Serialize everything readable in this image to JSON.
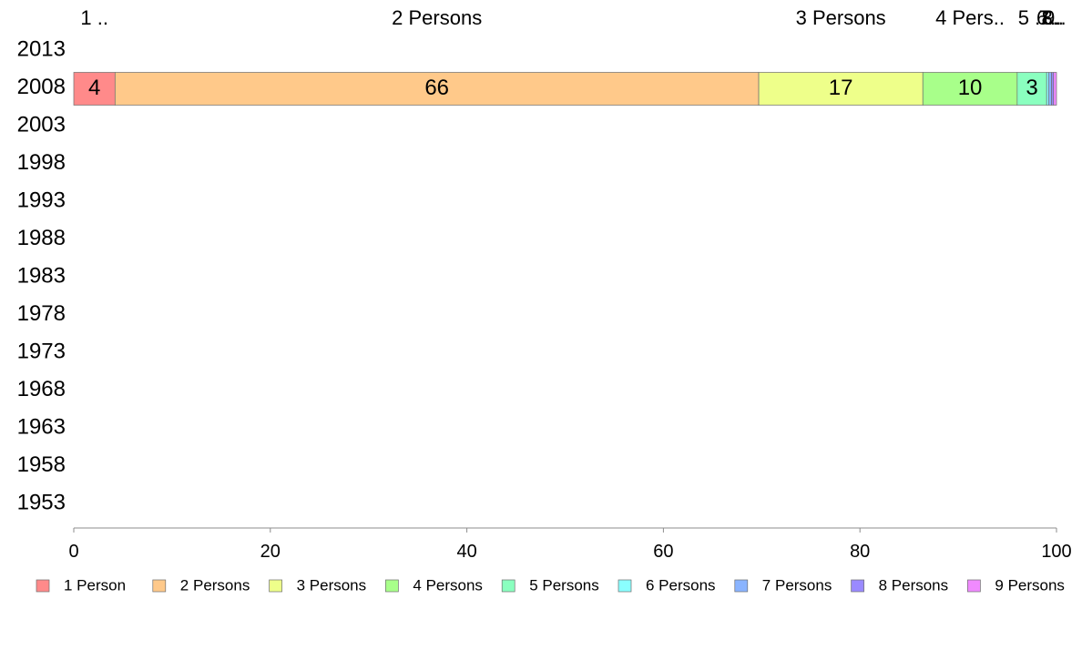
{
  "chart_data": {
    "type": "bar",
    "orientation": "horizontal",
    "stacked": true,
    "categories": [
      "2013",
      "2008",
      "2003",
      "1998",
      "1993",
      "1988",
      "1983",
      "1978",
      "1973",
      "1968",
      "1963",
      "1958",
      "1953"
    ],
    "series": [
      {
        "name": "1 Person",
        "color": "#ff8a8a",
        "values": [
          0,
          4.2,
          0,
          0,
          0,
          0,
          0,
          0,
          0,
          0,
          0,
          0,
          0
        ],
        "top_label": "1 ..",
        "value_label": "4"
      },
      {
        "name": "2 Persons",
        "color": "#ffc98a",
        "values": [
          0,
          65.5,
          0,
          0,
          0,
          0,
          0,
          0,
          0,
          0,
          0,
          0,
          0
        ],
        "top_label": "2 Persons",
        "value_label": "66"
      },
      {
        "name": "3 Persons",
        "color": "#eeff8a",
        "values": [
          0,
          16.7,
          0,
          0,
          0,
          0,
          0,
          0,
          0,
          0,
          0,
          0,
          0
        ],
        "top_label": "3 Persons",
        "value_label": "17"
      },
      {
        "name": "4 Persons",
        "color": "#a8ff8a",
        "values": [
          0,
          9.6,
          0,
          0,
          0,
          0,
          0,
          0,
          0,
          0,
          0,
          0,
          0
        ],
        "top_label": "4 Pers..",
        "value_label": "10"
      },
      {
        "name": "5 Persons",
        "color": "#8affbf",
        "values": [
          0,
          3.0,
          0,
          0,
          0,
          0,
          0,
          0,
          0,
          0,
          0,
          0,
          0
        ],
        "top_label": "5 ..",
        "value_label": "3"
      },
      {
        "name": "6 Persons",
        "color": "#8affff",
        "values": [
          0,
          0.2,
          0,
          0,
          0,
          0,
          0,
          0,
          0,
          0,
          0,
          0,
          0
        ],
        "top_label": "6..",
        "value_label": ""
      },
      {
        "name": "7 Persons",
        "color": "#8ab4ff",
        "values": [
          0,
          0.3,
          0,
          0,
          0,
          0,
          0,
          0,
          0,
          0,
          0,
          0,
          0
        ],
        "top_label": "7..",
        "value_label": ""
      },
      {
        "name": "8 Persons",
        "color": "#9a8aff",
        "values": [
          0,
          0.2,
          0,
          0,
          0,
          0,
          0,
          0,
          0,
          0,
          0,
          0,
          0
        ],
        "top_label": "8..",
        "value_label": ""
      },
      {
        "name": "9 Persons",
        "color": "#f08aff",
        "values": [
          0,
          0.3,
          0,
          0,
          0,
          0,
          0,
          0,
          0,
          0,
          0,
          0,
          0
        ],
        "top_label": "9..",
        "value_label": ""
      }
    ],
    "xlim": [
      0,
      100
    ],
    "xticks": [
      "0",
      "20",
      "40",
      "60",
      "80",
      "100"
    ],
    "grid": false,
    "legend_position": "bottom",
    "title": "",
    "xlabel": "",
    "ylabel": ""
  }
}
